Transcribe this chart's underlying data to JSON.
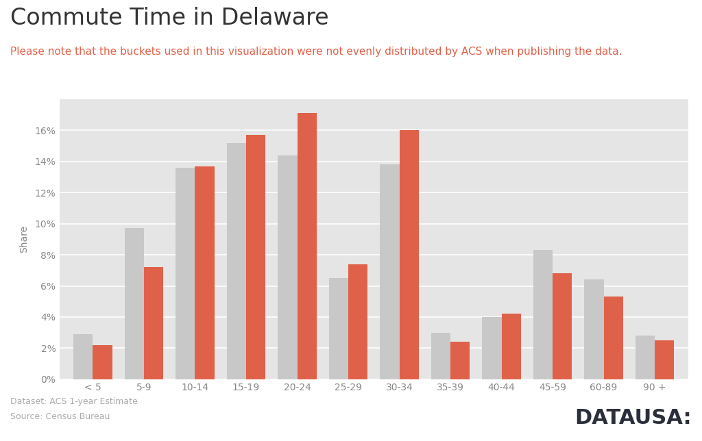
{
  "title": "Commute Time in Delaware",
  "subtitle": "Please note that the buckets used in this visualization were not evenly distributed by ACS when publishing the data.",
  "categories": [
    "< 5",
    "5-9",
    "10-14",
    "15-19",
    "20-24",
    "25-29",
    "30-34",
    "35-39",
    "40-44",
    "45-59",
    "60-89",
    "90 +"
  ],
  "series1_values": [
    2.9,
    9.7,
    13.6,
    15.2,
    14.4,
    6.5,
    13.8,
    3.0,
    4.0,
    8.3,
    6.4,
    2.8
  ],
  "series2_values": [
    2.2,
    7.2,
    13.7,
    15.7,
    17.1,
    7.4,
    16.0,
    2.4,
    4.2,
    6.8,
    5.3,
    2.5
  ],
  "bar_color1": "#c8c8c8",
  "bar_color2": "#e0614a",
  "plot_bg_color": "#e5e5e5",
  "outer_bg_color": "#ffffff",
  "ylabel": "Share",
  "ylim": [
    0,
    18
  ],
  "yticks": [
    0,
    2,
    4,
    6,
    8,
    10,
    12,
    14,
    16
  ],
  "title_fontsize": 24,
  "title_color": "#333333",
  "subtitle_fontsize": 11,
  "subtitle_color": "#e0614a",
  "tick_fontsize": 10,
  "tick_color": "#888888",
  "ylabel_fontsize": 10,
  "ylabel_color": "#888888",
  "footer_dataset": "Dataset: ACS 1-year Estimate",
  "footer_source": "Source: Census Bureau",
  "footer_brand": "DATAUSA:",
  "footer_text_color": "#aaaaaa",
  "brand_color": "#2a2f3a",
  "brand_fontsize": 22,
  "grid_color": "#ffffff",
  "bar_width": 0.38
}
